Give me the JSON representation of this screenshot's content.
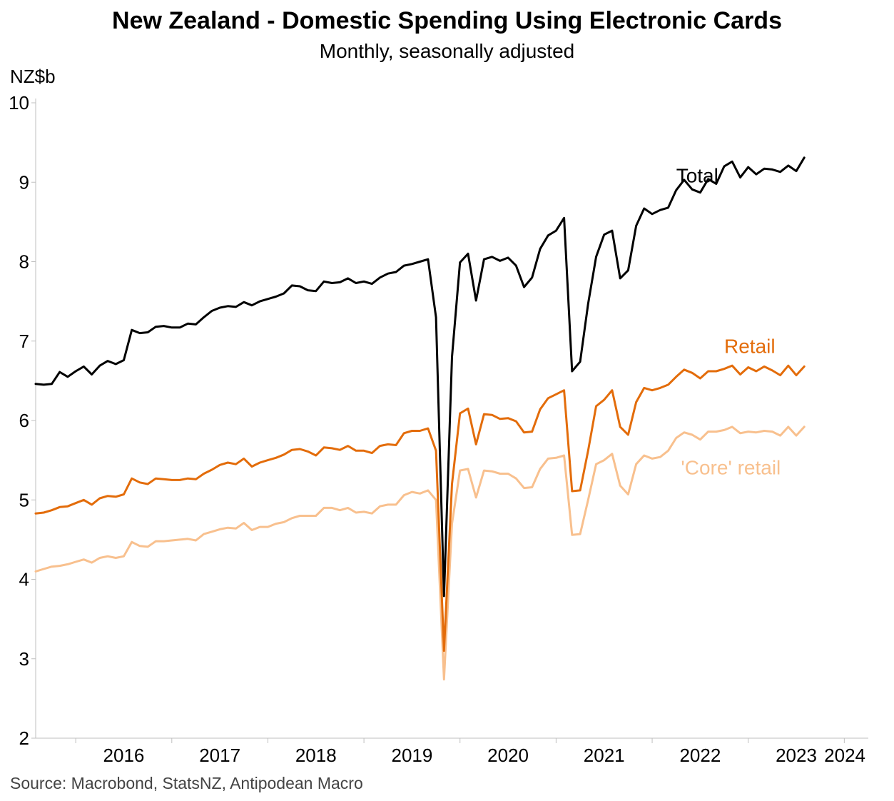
{
  "header": {
    "title": "New Zealand - Domestic Spending Using Electronic Cards",
    "subtitle": "Monthly, seasonally adjusted"
  },
  "footer": {
    "source": "Source: Macrobond, StatsNZ, Antipodean Macro"
  },
  "chart_data": {
    "type": "line",
    "title": "New Zealand - Domestic Spending Using Electronic Cards",
    "subtitle": "Monthly, seasonally adjusted",
    "ylabel": "NZ$b",
    "xlabel": "",
    "ylim": [
      2,
      10
    ],
    "yticks": [
      "2",
      "3",
      "4",
      "5",
      "6",
      "7",
      "8",
      "9",
      "10"
    ],
    "xlim": [
      2015.583,
      2024.25
    ],
    "xticks": [
      "2016",
      "2017",
      "2018",
      "2019",
      "2020",
      "2021",
      "2022",
      "2023",
      "2024"
    ],
    "grid": false,
    "legend": "inline labels",
    "x_start": "2015-08",
    "x_step": "1 month",
    "series": [
      {
        "name": "Total",
        "color": "#000000",
        "label_x": 2022.25,
        "label_y": 9.0,
        "values": [
          6.46,
          6.45,
          6.46,
          6.61,
          6.55,
          6.62,
          6.68,
          6.58,
          6.69,
          6.75,
          6.71,
          6.76,
          7.14,
          7.1,
          7.11,
          7.18,
          7.19,
          7.17,
          7.17,
          7.22,
          7.21,
          7.3,
          7.38,
          7.42,
          7.44,
          7.43,
          7.49,
          7.45,
          7.5,
          7.53,
          7.56,
          7.6,
          7.7,
          7.69,
          7.64,
          7.63,
          7.75,
          7.73,
          7.74,
          7.79,
          7.73,
          7.75,
          7.72,
          7.8,
          7.85,
          7.87,
          7.95,
          7.97,
          8.0,
          8.03,
          7.3,
          3.79,
          6.8,
          7.99,
          8.1,
          7.51,
          8.03,
          8.06,
          8.01,
          8.05,
          7.95,
          7.68,
          7.8,
          8.16,
          8.33,
          8.39,
          8.55,
          6.62,
          6.74,
          7.47,
          8.06,
          8.34,
          8.39,
          7.79,
          7.89,
          8.45,
          8.67,
          8.6,
          8.65,
          8.68,
          8.9,
          9.03,
          8.91,
          8.87,
          9.04,
          8.98,
          9.2,
          9.26,
          9.06,
          9.19,
          9.1,
          9.17,
          9.16,
          9.13,
          9.21,
          9.14,
          9.31
        ]
      },
      {
        "name": "Retail",
        "color": "#E36C0A",
        "label_x": 2022.75,
        "label_y": 6.85,
        "values": [
          4.83,
          4.84,
          4.87,
          4.91,
          4.92,
          4.96,
          5.0,
          4.94,
          5.02,
          5.05,
          5.04,
          5.07,
          5.27,
          5.22,
          5.2,
          5.27,
          5.26,
          5.25,
          5.25,
          5.27,
          5.26,
          5.33,
          5.38,
          5.44,
          5.47,
          5.45,
          5.52,
          5.42,
          5.47,
          5.5,
          5.53,
          5.57,
          5.63,
          5.64,
          5.61,
          5.56,
          5.66,
          5.65,
          5.63,
          5.68,
          5.62,
          5.62,
          5.59,
          5.68,
          5.7,
          5.69,
          5.84,
          5.87,
          5.87,
          5.9,
          5.62,
          3.1,
          5.2,
          6.09,
          6.15,
          5.7,
          6.08,
          6.07,
          6.02,
          6.03,
          5.99,
          5.85,
          5.86,
          6.14,
          6.28,
          6.33,
          6.38,
          5.11,
          5.12,
          5.62,
          6.18,
          6.26,
          6.38,
          5.92,
          5.82,
          6.23,
          6.41,
          6.38,
          6.41,
          6.45,
          6.55,
          6.64,
          6.6,
          6.53,
          6.62,
          6.62,
          6.65,
          6.69,
          6.58,
          6.67,
          6.62,
          6.68,
          6.63,
          6.57,
          6.69,
          6.57,
          6.68
        ]
      },
      {
        "name": "'Core' retail",
        "color": "#F8C08E",
        "label_x": 2022.3,
        "label_y": 5.32,
        "values": [
          4.1,
          4.13,
          4.16,
          4.17,
          4.19,
          4.22,
          4.25,
          4.21,
          4.27,
          4.29,
          4.27,
          4.29,
          4.47,
          4.42,
          4.41,
          4.48,
          4.48,
          4.49,
          4.5,
          4.51,
          4.49,
          4.57,
          4.6,
          4.63,
          4.65,
          4.64,
          4.71,
          4.62,
          4.66,
          4.66,
          4.7,
          4.72,
          4.77,
          4.8,
          4.8,
          4.8,
          4.9,
          4.9,
          4.87,
          4.9,
          4.84,
          4.85,
          4.83,
          4.92,
          4.94,
          4.94,
          5.06,
          5.1,
          5.08,
          5.12,
          5.0,
          2.74,
          4.7,
          5.37,
          5.39,
          5.03,
          5.37,
          5.36,
          5.33,
          5.33,
          5.27,
          5.15,
          5.16,
          5.39,
          5.52,
          5.53,
          5.56,
          4.56,
          4.57,
          5.0,
          5.45,
          5.5,
          5.58,
          5.18,
          5.07,
          5.45,
          5.56,
          5.52,
          5.54,
          5.62,
          5.78,
          5.85,
          5.82,
          5.76,
          5.86,
          5.86,
          5.88,
          5.92,
          5.84,
          5.86,
          5.85,
          5.87,
          5.86,
          5.81,
          5.92,
          5.81,
          5.92
        ]
      }
    ]
  }
}
